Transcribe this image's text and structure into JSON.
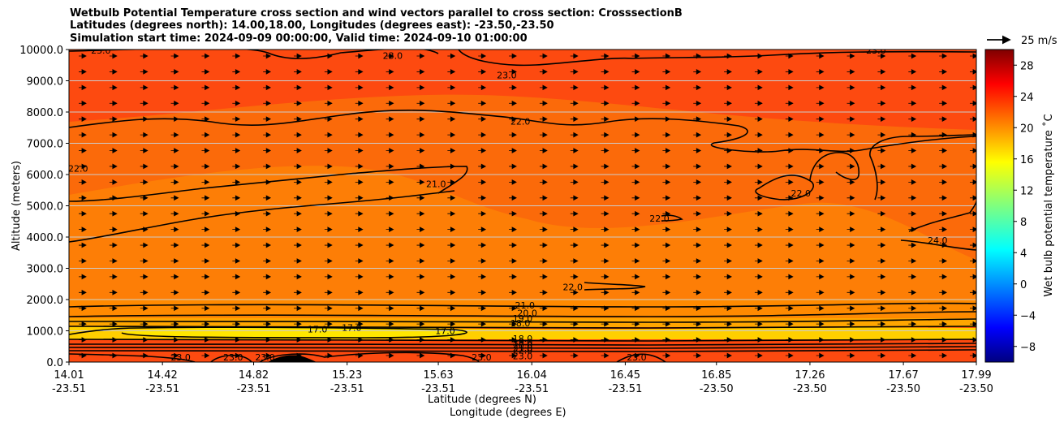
{
  "chart_data": {
    "type": "heatmap",
    "title_lines": [
      "Wetbulb Potential Temperature cross section and wind vectors parallel to cross section: CrosssectionB",
      "Latitudes (degrees north): 14.00,18.00, Longitudes (degrees east): -23.50,-23.50",
      "Simulation start time: 2024-09-09 00:00:00, Valid time: 2024-09-10 01:00:00"
    ],
    "xlabel_lat": "Latitude (degrees N)",
    "xlabel_lon": "Longitude (degrees E)",
    "ylabel": "Altitude (meters)",
    "x_ticks": [
      {
        "lat": "14.01",
        "lon": "-23.51"
      },
      {
        "lat": "14.42",
        "lon": "-23.51"
      },
      {
        "lat": "14.82",
        "lon": "-23.51"
      },
      {
        "lat": "15.23",
        "lon": "-23.51"
      },
      {
        "lat": "15.63",
        "lon": "-23.51"
      },
      {
        "lat": "16.04",
        "lon": "-23.51"
      },
      {
        "lat": "16.45",
        "lon": "-23.51"
      },
      {
        "lat": "16.85",
        "lon": "-23.50"
      },
      {
        "lat": "17.26",
        "lon": "-23.50"
      },
      {
        "lat": "17.67",
        "lon": "-23.50"
      },
      {
        "lat": "17.99",
        "lon": "-23.50"
      }
    ],
    "xlim": [
      14.01,
      17.99
    ],
    "ylim": [
      0,
      10000
    ],
    "y_ticks": [
      "0.0",
      "1000.0",
      "2000.0",
      "3000.0",
      "4000.0",
      "5000.0",
      "6000.0",
      "7000.0",
      "8000.0",
      "9000.0",
      "10000.0"
    ],
    "grid": "horizontal",
    "colorbar": {
      "label": "Wet bulb potential temperature ˚C",
      "ticks": [
        "−8",
        "−4",
        "0",
        "4",
        "8",
        "12",
        "16",
        "20",
        "24",
        "28"
      ],
      "range": [
        -10,
        30
      ],
      "colormap": "jet"
    },
    "quiver_key": "25 m/s",
    "contour_labels": [
      {
        "text": "23.0",
        "x": 14.15,
        "y": 9980
      },
      {
        "text": "23.0",
        "x": 15.43,
        "y": 9800
      },
      {
        "text": "23.0",
        "x": 15.93,
        "y": 9180
      },
      {
        "text": "23.0",
        "x": 17.55,
        "y": 9980
      },
      {
        "text": "22.0",
        "x": 15.99,
        "y": 7700
      },
      {
        "text": "22.0",
        "x": 14.05,
        "y": 6200
      },
      {
        "text": "21.0",
        "x": 15.62,
        "y": 5700
      },
      {
        "text": "22.0",
        "x": 16.6,
        "y": 4600
      },
      {
        "text": "22.0",
        "x": 17.22,
        "y": 5400
      },
      {
        "text": "24.0",
        "x": 17.82,
        "y": 3900
      },
      {
        "text": "22.0",
        "x": 16.22,
        "y": 2400
      },
      {
        "text": "21.0",
        "x": 16.01,
        "y": 1820
      },
      {
        "text": "20.0",
        "x": 16.02,
        "y": 1570
      },
      {
        "text": "19.0",
        "x": 16.0,
        "y": 1400
      },
      {
        "text": "18.0",
        "x": 15.99,
        "y": 1250
      },
      {
        "text": "17.0",
        "x": 15.25,
        "y": 1100
      },
      {
        "text": "17.0",
        "x": 15.66,
        "y": 1000
      },
      {
        "text": "18.0",
        "x": 16.0,
        "y": 750
      },
      {
        "text": "19.0",
        "x": 16.0,
        "y": 640
      },
      {
        "text": "20.0",
        "x": 16.0,
        "y": 540
      },
      {
        "text": "21.0",
        "x": 16.0,
        "y": 460
      },
      {
        "text": "22.0",
        "x": 16.0,
        "y": 380
      },
      {
        "text": "23.0",
        "x": 16.0,
        "y": 200
      },
      {
        "text": "23.0",
        "x": 14.5,
        "y": 150
      },
      {
        "text": "23.0",
        "x": 14.73,
        "y": 150
      },
      {
        "text": "23.0",
        "x": 14.87,
        "y": 150
      },
      {
        "text": "23.0",
        "x": 15.82,
        "y": 150
      },
      {
        "text": "23.0",
        "x": 16.5,
        "y": 150
      },
      {
        "text": "17.0",
        "x": 15.1,
        "y": 1050
      }
    ]
  }
}
